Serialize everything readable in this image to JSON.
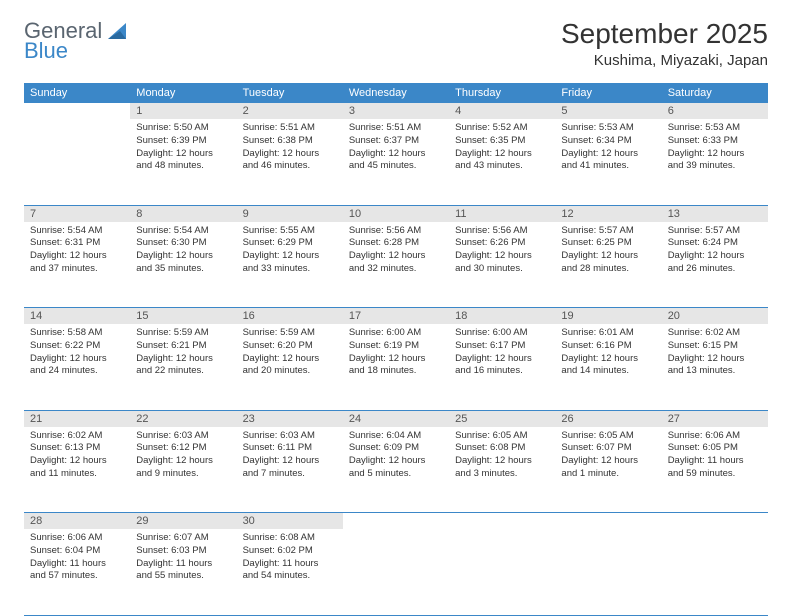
{
  "logo": {
    "text1": "General",
    "text2": "Blue"
  },
  "title": "September 2025",
  "location": "Kushima, Miyazaki, Japan",
  "weekdays": [
    "Sunday",
    "Monday",
    "Tuesday",
    "Wednesday",
    "Thursday",
    "Friday",
    "Saturday"
  ],
  "colors": {
    "header_bg": "#3b87c8",
    "daynum_bg": "#e6e6e6",
    "rule": "#3b87c8"
  },
  "weeks": [
    [
      null,
      {
        "n": "1",
        "sr": "5:50 AM",
        "ss": "6:39 PM",
        "dl": "12 hours and 48 minutes."
      },
      {
        "n": "2",
        "sr": "5:51 AM",
        "ss": "6:38 PM",
        "dl": "12 hours and 46 minutes."
      },
      {
        "n": "3",
        "sr": "5:51 AM",
        "ss": "6:37 PM",
        "dl": "12 hours and 45 minutes."
      },
      {
        "n": "4",
        "sr": "5:52 AM",
        "ss": "6:35 PM",
        "dl": "12 hours and 43 minutes."
      },
      {
        "n": "5",
        "sr": "5:53 AM",
        "ss": "6:34 PM",
        "dl": "12 hours and 41 minutes."
      },
      {
        "n": "6",
        "sr": "5:53 AM",
        "ss": "6:33 PM",
        "dl": "12 hours and 39 minutes."
      }
    ],
    [
      {
        "n": "7",
        "sr": "5:54 AM",
        "ss": "6:31 PM",
        "dl": "12 hours and 37 minutes."
      },
      {
        "n": "8",
        "sr": "5:54 AM",
        "ss": "6:30 PM",
        "dl": "12 hours and 35 minutes."
      },
      {
        "n": "9",
        "sr": "5:55 AM",
        "ss": "6:29 PM",
        "dl": "12 hours and 33 minutes."
      },
      {
        "n": "10",
        "sr": "5:56 AM",
        "ss": "6:28 PM",
        "dl": "12 hours and 32 minutes."
      },
      {
        "n": "11",
        "sr": "5:56 AM",
        "ss": "6:26 PM",
        "dl": "12 hours and 30 minutes."
      },
      {
        "n": "12",
        "sr": "5:57 AM",
        "ss": "6:25 PM",
        "dl": "12 hours and 28 minutes."
      },
      {
        "n": "13",
        "sr": "5:57 AM",
        "ss": "6:24 PM",
        "dl": "12 hours and 26 minutes."
      }
    ],
    [
      {
        "n": "14",
        "sr": "5:58 AM",
        "ss": "6:22 PM",
        "dl": "12 hours and 24 minutes."
      },
      {
        "n": "15",
        "sr": "5:59 AM",
        "ss": "6:21 PM",
        "dl": "12 hours and 22 minutes."
      },
      {
        "n": "16",
        "sr": "5:59 AM",
        "ss": "6:20 PM",
        "dl": "12 hours and 20 minutes."
      },
      {
        "n": "17",
        "sr": "6:00 AM",
        "ss": "6:19 PM",
        "dl": "12 hours and 18 minutes."
      },
      {
        "n": "18",
        "sr": "6:00 AM",
        "ss": "6:17 PM",
        "dl": "12 hours and 16 minutes."
      },
      {
        "n": "19",
        "sr": "6:01 AM",
        "ss": "6:16 PM",
        "dl": "12 hours and 14 minutes."
      },
      {
        "n": "20",
        "sr": "6:02 AM",
        "ss": "6:15 PM",
        "dl": "12 hours and 13 minutes."
      }
    ],
    [
      {
        "n": "21",
        "sr": "6:02 AM",
        "ss": "6:13 PM",
        "dl": "12 hours and 11 minutes."
      },
      {
        "n": "22",
        "sr": "6:03 AM",
        "ss": "6:12 PM",
        "dl": "12 hours and 9 minutes."
      },
      {
        "n": "23",
        "sr": "6:03 AM",
        "ss": "6:11 PM",
        "dl": "12 hours and 7 minutes."
      },
      {
        "n": "24",
        "sr": "6:04 AM",
        "ss": "6:09 PM",
        "dl": "12 hours and 5 minutes."
      },
      {
        "n": "25",
        "sr": "6:05 AM",
        "ss": "6:08 PM",
        "dl": "12 hours and 3 minutes."
      },
      {
        "n": "26",
        "sr": "6:05 AM",
        "ss": "6:07 PM",
        "dl": "12 hours and 1 minute."
      },
      {
        "n": "27",
        "sr": "6:06 AM",
        "ss": "6:05 PM",
        "dl": "11 hours and 59 minutes."
      }
    ],
    [
      {
        "n": "28",
        "sr": "6:06 AM",
        "ss": "6:04 PM",
        "dl": "11 hours and 57 minutes."
      },
      {
        "n": "29",
        "sr": "6:07 AM",
        "ss": "6:03 PM",
        "dl": "11 hours and 55 minutes."
      },
      {
        "n": "30",
        "sr": "6:08 AM",
        "ss": "6:02 PM",
        "dl": "11 hours and 54 minutes."
      },
      null,
      null,
      null,
      null
    ]
  ],
  "labels": {
    "sunrise": "Sunrise:",
    "sunset": "Sunset:",
    "daylight": "Daylight:"
  }
}
